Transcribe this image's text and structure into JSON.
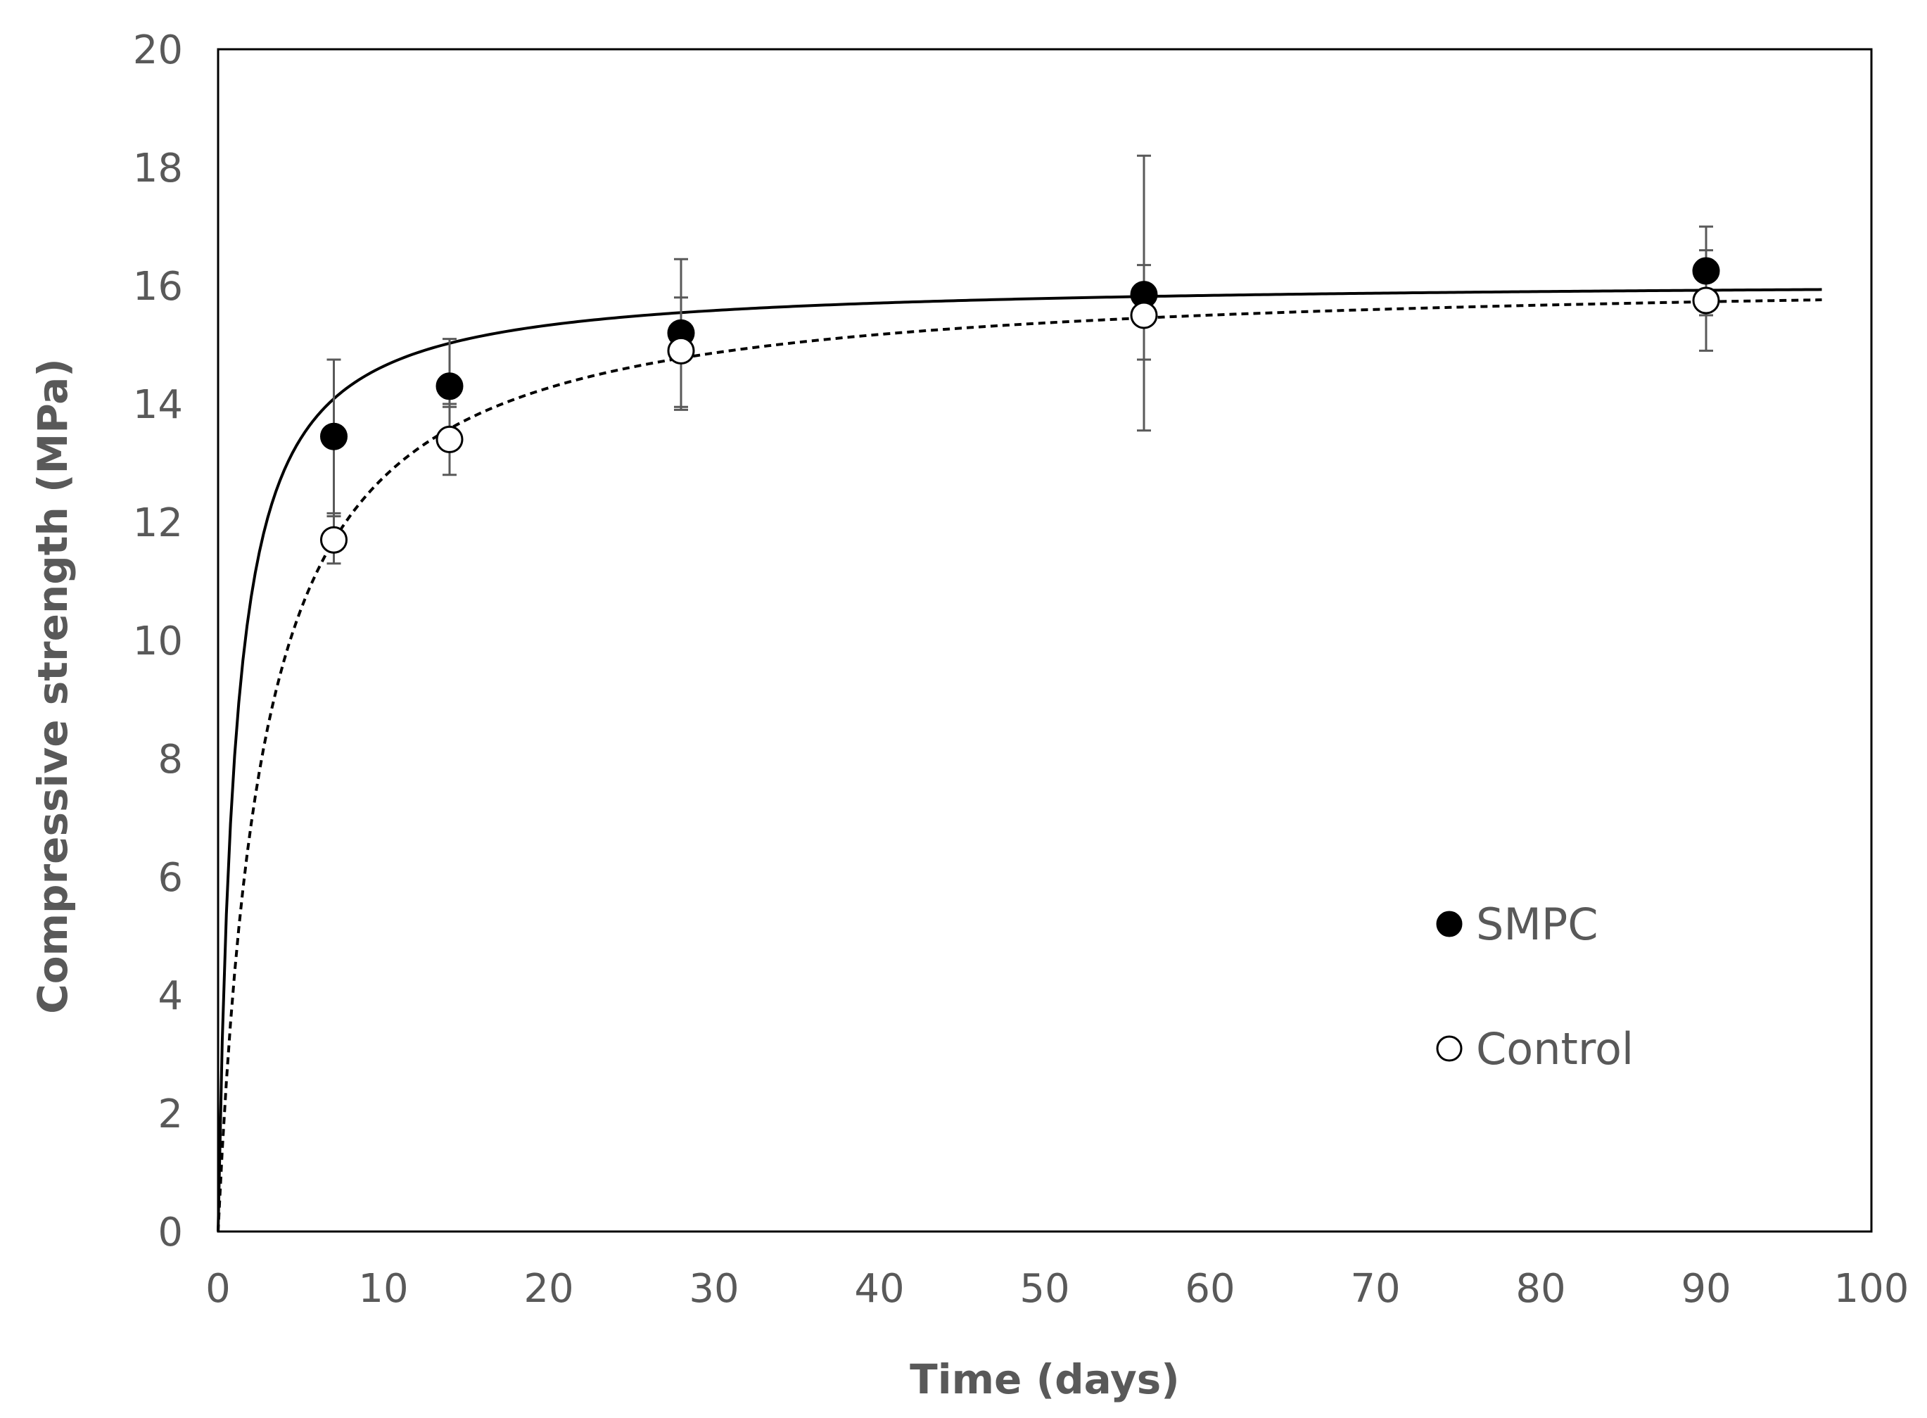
{
  "chart_data": {
    "type": "scatter",
    "title": "",
    "xlabel": "Time (days)",
    "ylabel": "Compressive strength (MPa)",
    "xlim": [
      0,
      100
    ],
    "ylim": [
      0,
      20
    ],
    "x_ticks": [
      "0",
      "10",
      "20",
      "30",
      "40",
      "50",
      "60",
      "70",
      "80",
      "90",
      "100"
    ],
    "y_ticks": [
      "0",
      "2",
      "4",
      "6",
      "8",
      "10",
      "12",
      "14",
      "16",
      "18",
      "20"
    ],
    "grid": false,
    "legend_position": "bottom-right",
    "series": [
      {
        "name": "SMPC",
        "marker": "filled-circle",
        "color": "#000000",
        "x": [
          7,
          14,
          28,
          56,
          90
        ],
        "y": [
          13.45,
          14.3,
          15.2,
          15.85,
          16.25
        ],
        "y_err_low": [
          12.1,
          13.95,
          13.95,
          14.75,
          15.5
        ],
        "y_err_high": [
          14.75,
          15.1,
          15.8,
          18.2,
          17.0
        ],
        "fit": {
          "style": "solid",
          "a": 16.1,
          "b": 1.0
        }
      },
      {
        "name": "Control",
        "marker": "open-circle",
        "color": "#000000",
        "x": [
          7,
          14,
          28,
          56,
          90
        ],
        "y": [
          11.7,
          13.4,
          14.9,
          15.5,
          15.75
        ],
        "y_err_low": [
          11.3,
          12.8,
          13.9,
          13.55,
          14.9
        ],
        "y_err_high": [
          12.15,
          14.0,
          16.45,
          16.35,
          16.6
        ],
        "fit": {
          "style": "dashed",
          "a": 16.2,
          "b": 2.7
        }
      }
    ]
  }
}
